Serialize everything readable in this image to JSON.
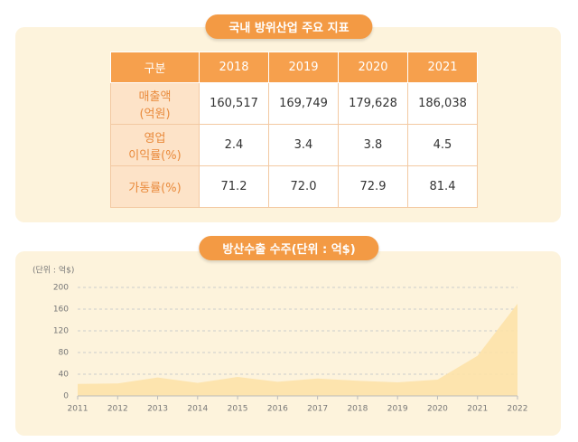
{
  "table": {
    "title": "국내 방위산업 주요 지표",
    "header": [
      "구분",
      "2018",
      "2019",
      "2020",
      "2021"
    ],
    "rows": [
      [
        "매출액\n(억원)",
        "160,517",
        "169,749",
        "179,628",
        "186,038"
      ],
      [
        "영업\n이익률(%)",
        "2.4",
        "3.4",
        "3.8",
        "4.5"
      ],
      [
        "가동률(%)",
        "71.2",
        "72.0",
        "72.9",
        "81.4"
      ]
    ]
  },
  "chart_data": {
    "type": "area",
    "title": "방산수출 수주(단위 : 억$)",
    "y_label": "(단위 : 억$)",
    "x": [
      2011,
      2012,
      2013,
      2014,
      2015,
      2016,
      2017,
      2018,
      2019,
      2020,
      2021,
      2022
    ],
    "values": [
      22,
      23,
      34,
      24,
      35,
      26,
      32,
      28,
      25,
      30,
      74,
      170
    ],
    "color": "#fde2a8",
    "xlim": [
      2011,
      2022
    ],
    "xticks": [
      2011,
      2012,
      2013,
      2014,
      2015,
      2016,
      2017,
      2018,
      2019,
      2020,
      2021,
      2022
    ],
    "ylim": [
      0,
      200
    ],
    "yticks": [
      0,
      40,
      80,
      120,
      160,
      200
    ],
    "grid": true
  }
}
